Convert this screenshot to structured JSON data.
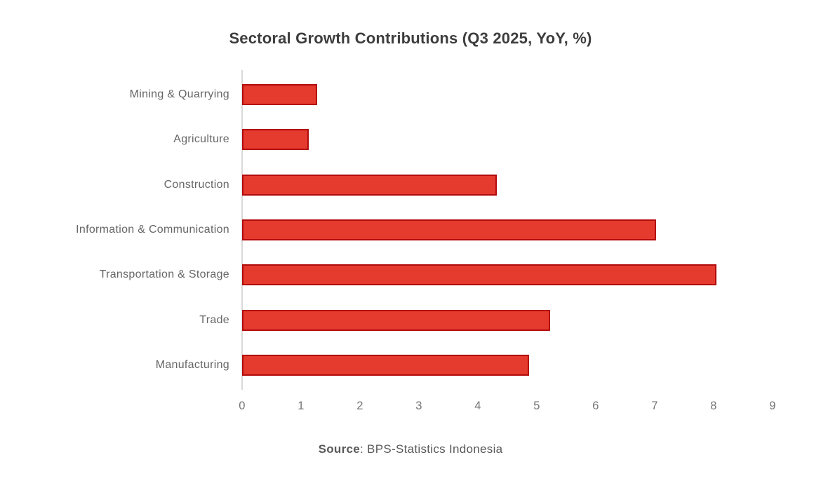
{
  "chart_data": {
    "type": "bar",
    "orientation": "horizontal",
    "title": "Sectoral Growth Contributions (Q3 2025, YoY, %)",
    "categories": [
      "Mining & Quarrying",
      "Agriculture",
      "Construction",
      "Information & Communication",
      "Transportation & Storage",
      "Trade",
      "Manufacturing"
    ],
    "values": [
      1.27,
      1.13,
      4.32,
      7.02,
      8.05,
      5.23,
      4.87
    ],
    "xlabel": "",
    "ylabel": "",
    "xlim": [
      0,
      9
    ],
    "xticks": [
      "0",
      "1",
      "2",
      "3",
      "4",
      "5",
      "6",
      "7",
      "8",
      "9"
    ],
    "grid": false,
    "legend": null,
    "colors": {
      "bar_fill": "#E53A2E",
      "bar_border": "#B20B0B",
      "axis_line": "#D9D9D9",
      "category_label": "#666666",
      "tick_label": "#757575",
      "title": "#3D3D3D"
    }
  },
  "source": {
    "bold": "Source",
    "rest": ": BPS-Statistics Indonesia"
  }
}
